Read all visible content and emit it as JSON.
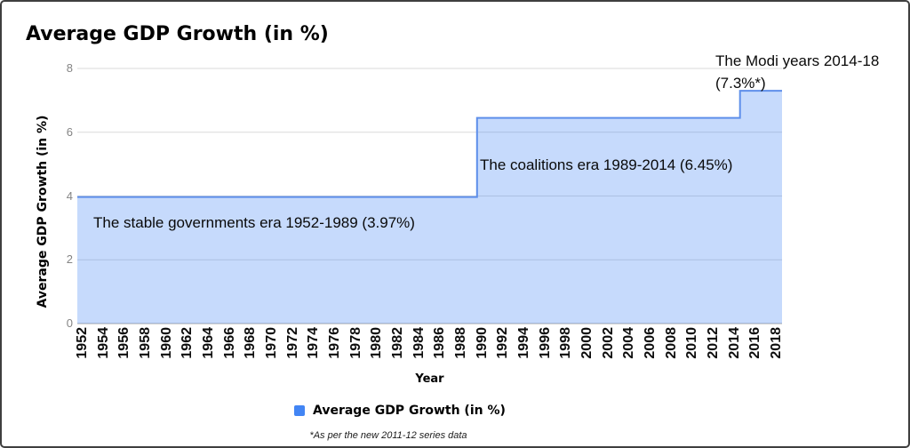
{
  "chart_data": {
    "type": "area",
    "subtype": "stepped-area",
    "title": "Average GDP Growth (in %)",
    "xlabel": "Year",
    "ylabel": "Average GDP Growth (in %)",
    "ylim": [
      0,
      8
    ],
    "y_ticks": [
      0,
      2,
      4,
      6,
      8
    ],
    "x_domain_years": [
      1951,
      2018
    ],
    "x_tick_years": [
      "1952",
      "1954",
      "1956",
      "1958",
      "1960",
      "1962",
      "1964",
      "1966",
      "1968",
      "1970",
      "1972",
      "1974",
      "1976",
      "1978",
      "1980",
      "1982",
      "1984",
      "1986",
      "1988",
      "1990",
      "1992",
      "1994",
      "1996",
      "1998",
      "2000",
      "2002",
      "2004",
      "2006",
      "2008",
      "2010",
      "2012",
      "2014",
      "2016",
      "2018"
    ],
    "series": [
      {
        "name": "Average GDP Growth (in %)",
        "segments": [
          {
            "era": "The stable governments era",
            "start_year": 1952,
            "end_year": 1989,
            "value": 3.97
          },
          {
            "era": "The coalitions era",
            "start_year": 1989,
            "end_year": 2014,
            "value": 6.45
          },
          {
            "era": "The Modi years",
            "start_year": 2014,
            "end_year": 2018,
            "value": 7.3
          }
        ]
      }
    ],
    "annotations": [
      {
        "text": "The stable governments era 1952-1989 (3.97%)"
      },
      {
        "text": "The coalitions era 1989-2014 (6.45%)"
      },
      {
        "text_line1": "The Modi years 2014-18",
        "text_line2": "(7.3%*)"
      }
    ],
    "legend": {
      "position": "bottom",
      "swatch_color": "#4285f4",
      "label": "Average GDP Growth (in %)"
    },
    "footnote": "*As per the new 2011-12 series data",
    "grid": true,
    "colors": {
      "area_fill": "#4285f4",
      "area_fill_opacity": 0.3,
      "area_stroke": "#5e8fea",
      "gridline": "#dadada",
      "baseline": "#a6a6a6",
      "y_tick_label": "#848484",
      "x_tick_label": "#0d0d0d"
    }
  }
}
